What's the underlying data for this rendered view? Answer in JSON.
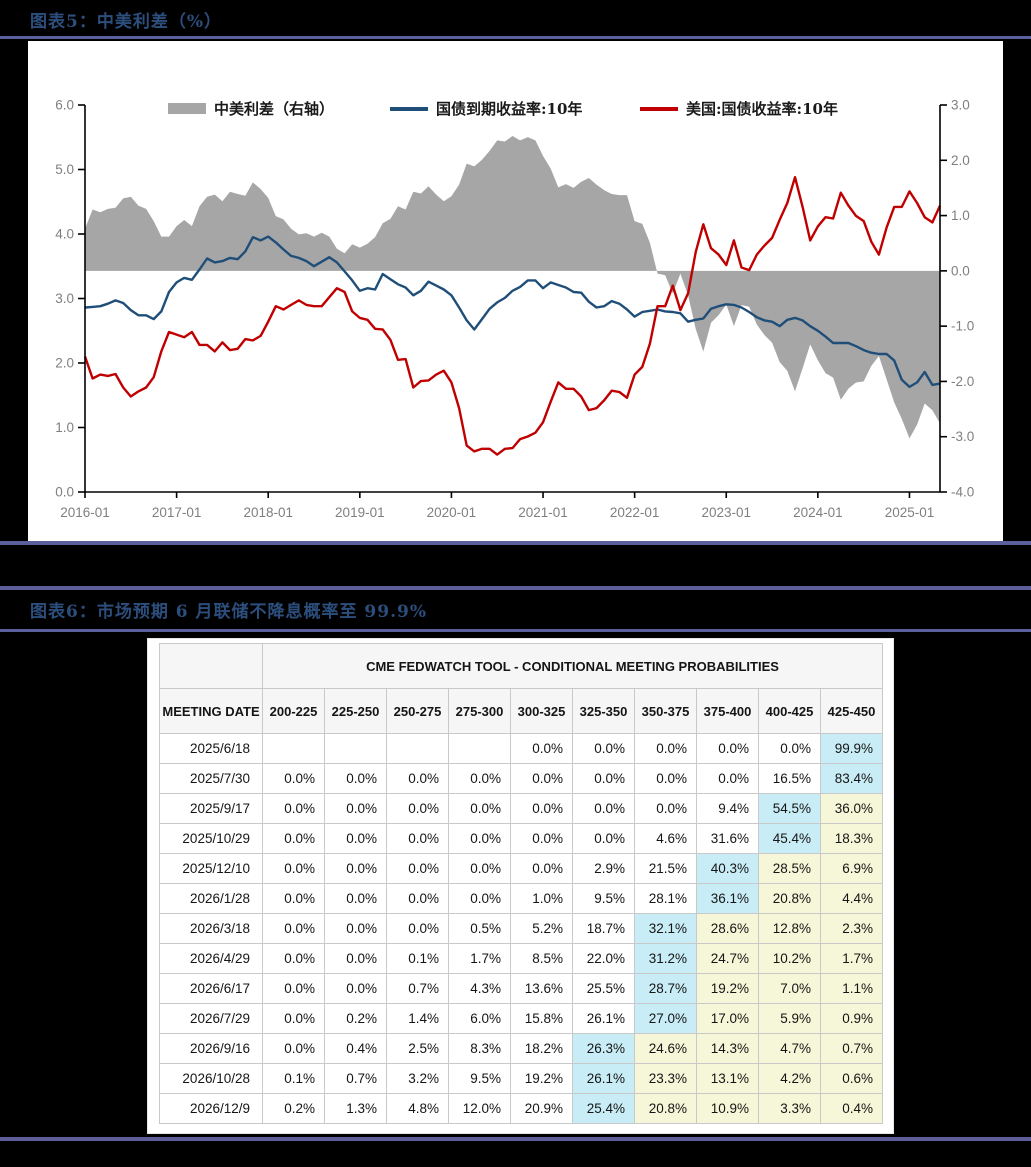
{
  "figure5": {
    "title": "图表5：中美利差（%）",
    "x_axis_labels": [
      "2016-01",
      "2017-01",
      "2018-01",
      "2019-01",
      "2020-01",
      "2021-01",
      "2022-01",
      "2023-01",
      "2024-01",
      "2025-01"
    ]
  },
  "figure6": {
    "title": "图表6：市场预期 6 月联储不降息概率至 99.9%"
  },
  "colors": {
    "separator": "#5d5f9b",
    "title_navy": "#2c4e7c",
    "axis_label_gray": "#7f7f7f",
    "spread_gray": "#a6a6a6",
    "cn_blue": "#1f4e79",
    "us_red": "#c00000"
  },
  "chart_data": {
    "type": "area+line combo, dual axis",
    "title": "中美利差（%）",
    "x_start": "2016-01",
    "x_interval": "monthly",
    "x_ticks": [
      "2016-01",
      "2017-01",
      "2018-01",
      "2019-01",
      "2020-01",
      "2021-01",
      "2022-01",
      "2023-01",
      "2024-01",
      "2025-01"
    ],
    "left_axis": {
      "min": 0,
      "max": 6,
      "ticks": [
        "0.0",
        "1.0",
        "2.0",
        "3.0",
        "4.0",
        "5.0",
        "6.0"
      ]
    },
    "right_axis": {
      "min": -4,
      "max": 3,
      "ticks": [
        "-4.0",
        "-3.0",
        "-2.0",
        "-1.0",
        "0.0",
        "1.0",
        "2.0",
        "3.0"
      ]
    },
    "legend_position": "top",
    "grid": false,
    "series": [
      {
        "name": "中美利差（右轴）",
        "type": "area",
        "axis": "right",
        "color": "#a6a6a6",
        "values": [
          0.76,
          1.11,
          1.06,
          1.12,
          1.14,
          1.31,
          1.34,
          1.18,
          1.12,
          0.9,
          0.62,
          0.62,
          0.81,
          0.92,
          0.81,
          1.17,
          1.34,
          1.38,
          1.26,
          1.43,
          1.39,
          1.36,
          1.6,
          1.48,
          1.32,
          0.99,
          0.93,
          0.76,
          0.66,
          0.68,
          0.62,
          0.69,
          0.62,
          0.4,
          0.32,
          0.48,
          0.42,
          0.49,
          0.61,
          0.86,
          0.94,
          1.17,
          1.11,
          1.43,
          1.4,
          1.53,
          1.38,
          1.26,
          1.35,
          1.56,
          1.94,
          1.89,
          2.01,
          2.17,
          2.36,
          2.34,
          2.44,
          2.36,
          2.42,
          2.36,
          2.08,
          1.85,
          1.51,
          1.57,
          1.5,
          1.61,
          1.68,
          1.56,
          1.46,
          1.39,
          1.37,
          1.37,
          0.9,
          0.85,
          0.51,
          -0.05,
          -0.08,
          -0.41,
          -0.05,
          -0.44,
          -1.05,
          -1.46,
          -0.94,
          -0.8,
          -0.61,
          -1.0,
          -0.62,
          -0.65,
          -0.97,
          -1.16,
          -1.3,
          -1.65,
          -1.81,
          -2.18,
          -1.76,
          -1.33,
          -1.62,
          -1.85,
          -1.93,
          -2.33,
          -2.13,
          -2.02,
          -2.0,
          -1.72,
          -1.54,
          -1.96,
          -2.38,
          -2.68,
          -3.03,
          -2.78,
          -2.4,
          -2.52,
          -2.76
        ]
      },
      {
        "name": "国债到期收益率:10年",
        "type": "line",
        "axis": "left",
        "color": "#1f4e79",
        "values": [
          2.86,
          2.87,
          2.88,
          2.92,
          2.97,
          2.93,
          2.82,
          2.74,
          2.74,
          2.68,
          2.8,
          3.1,
          3.25,
          3.32,
          3.29,
          3.45,
          3.62,
          3.56,
          3.58,
          3.63,
          3.61,
          3.73,
          3.95,
          3.9,
          3.96,
          3.87,
          3.76,
          3.66,
          3.63,
          3.58,
          3.5,
          3.57,
          3.64,
          3.56,
          3.42,
          3.28,
          3.12,
          3.16,
          3.14,
          3.38,
          3.3,
          3.22,
          3.17,
          3.05,
          3.12,
          3.26,
          3.2,
          3.14,
          3.05,
          2.86,
          2.66,
          2.52,
          2.68,
          2.84,
          2.94,
          3.01,
          3.12,
          3.18,
          3.28,
          3.28,
          3.16,
          3.25,
          3.21,
          3.17,
          3.1,
          3.09,
          2.95,
          2.86,
          2.88,
          2.96,
          2.92,
          2.83,
          2.72,
          2.79,
          2.81,
          2.83,
          2.8,
          2.79,
          2.77,
          2.64,
          2.67,
          2.69,
          2.84,
          2.88,
          2.91,
          2.9,
          2.86,
          2.79,
          2.71,
          2.66,
          2.64,
          2.57,
          2.67,
          2.7,
          2.66,
          2.57,
          2.5,
          2.41,
          2.31,
          2.31,
          2.31,
          2.26,
          2.2,
          2.16,
          2.14,
          2.14,
          2.04,
          1.74,
          1.63,
          1.7,
          1.86,
          1.66,
          1.68
        ]
      },
      {
        "name": "美国:国债收益率:10年",
        "type": "line",
        "axis": "left",
        "color": "#c00000",
        "values": [
          2.1,
          1.76,
          1.82,
          1.8,
          1.83,
          1.62,
          1.48,
          1.56,
          1.62,
          1.78,
          2.18,
          2.48,
          2.44,
          2.4,
          2.48,
          2.28,
          2.28,
          2.18,
          2.32,
          2.2,
          2.22,
          2.37,
          2.35,
          2.42,
          2.64,
          2.88,
          2.83,
          2.9,
          2.97,
          2.9,
          2.88,
          2.88,
          3.02,
          3.16,
          3.1,
          2.8,
          2.7,
          2.67,
          2.53,
          2.52,
          2.36,
          2.05,
          2.06,
          1.62,
          1.72,
          1.73,
          1.82,
          1.88,
          1.7,
          1.3,
          0.72,
          0.63,
          0.67,
          0.67,
          0.58,
          0.67,
          0.68,
          0.82,
          0.86,
          0.92,
          1.08,
          1.4,
          1.7,
          1.6,
          1.6,
          1.48,
          1.27,
          1.3,
          1.42,
          1.57,
          1.55,
          1.46,
          1.82,
          1.94,
          2.3,
          2.88,
          2.88,
          3.2,
          2.82,
          3.08,
          3.72,
          4.15,
          3.78,
          3.68,
          3.52,
          3.9,
          3.48,
          3.44,
          3.68,
          3.82,
          3.94,
          4.22,
          4.48,
          4.88,
          4.42,
          3.9,
          4.12,
          4.26,
          4.24,
          4.64,
          4.44,
          4.28,
          4.2,
          3.88,
          3.68,
          4.1,
          4.42,
          4.42,
          4.66,
          4.48,
          4.26,
          4.18,
          4.44
        ]
      }
    ]
  },
  "table": {
    "title_row": "CME FEDWATCH TOOL - CONDITIONAL MEETING PROBABILITIES",
    "date_header": "MEETING DATE",
    "range_headers": [
      "200-225",
      "225-250",
      "250-275",
      "275-300",
      "300-325",
      "325-350",
      "350-375",
      "375-400",
      "400-425",
      "425-450"
    ],
    "highlight_cyan": "#c9edf6",
    "highlight_yellow": "#f6f6d8",
    "rows": [
      {
        "date": "2025/6/18",
        "values": [
          "",
          "",
          "",
          "",
          "0.0%",
          "0.0%",
          "0.0%",
          "0.0%",
          "0.0%",
          "99.9%"
        ],
        "hl": [
          "",
          "",
          "",
          "",
          "",
          "",
          "",
          "",
          "",
          "c"
        ]
      },
      {
        "date": "2025/7/30",
        "values": [
          "0.0%",
          "0.0%",
          "0.0%",
          "0.0%",
          "0.0%",
          "0.0%",
          "0.0%",
          "0.0%",
          "16.5%",
          "83.4%"
        ],
        "hl": [
          "",
          "",
          "",
          "",
          "",
          "",
          "",
          "",
          "",
          "c"
        ]
      },
      {
        "date": "2025/9/17",
        "values": [
          "0.0%",
          "0.0%",
          "0.0%",
          "0.0%",
          "0.0%",
          "0.0%",
          "0.0%",
          "9.4%",
          "54.5%",
          "36.0%"
        ],
        "hl": [
          "",
          "",
          "",
          "",
          "",
          "",
          "",
          "",
          "c",
          "y"
        ]
      },
      {
        "date": "2025/10/29",
        "values": [
          "0.0%",
          "0.0%",
          "0.0%",
          "0.0%",
          "0.0%",
          "0.0%",
          "4.6%",
          "31.6%",
          "45.4%",
          "18.3%"
        ],
        "hl": [
          "",
          "",
          "",
          "",
          "",
          "",
          "",
          "",
          "c",
          "y"
        ]
      },
      {
        "date": "2025/12/10",
        "values": [
          "0.0%",
          "0.0%",
          "0.0%",
          "0.0%",
          "0.0%",
          "2.9%",
          "21.5%",
          "40.3%",
          "28.5%",
          "6.9%"
        ],
        "hl": [
          "",
          "",
          "",
          "",
          "",
          "",
          "",
          "c",
          "y",
          "y"
        ]
      },
      {
        "date": "2026/1/28",
        "values": [
          "0.0%",
          "0.0%",
          "0.0%",
          "0.0%",
          "1.0%",
          "9.5%",
          "28.1%",
          "36.1%",
          "20.8%",
          "4.4%"
        ],
        "hl": [
          "",
          "",
          "",
          "",
          "",
          "",
          "",
          "c",
          "y",
          "y"
        ]
      },
      {
        "date": "2026/3/18",
        "values": [
          "0.0%",
          "0.0%",
          "0.0%",
          "0.5%",
          "5.2%",
          "18.7%",
          "32.1%",
          "28.6%",
          "12.8%",
          "2.3%"
        ],
        "hl": [
          "",
          "",
          "",
          "",
          "",
          "",
          "c",
          "y",
          "y",
          "y"
        ]
      },
      {
        "date": "2026/4/29",
        "values": [
          "0.0%",
          "0.0%",
          "0.1%",
          "1.7%",
          "8.5%",
          "22.0%",
          "31.2%",
          "24.7%",
          "10.2%",
          "1.7%"
        ],
        "hl": [
          "",
          "",
          "",
          "",
          "",
          "",
          "c",
          "y",
          "y",
          "y"
        ]
      },
      {
        "date": "2026/6/17",
        "values": [
          "0.0%",
          "0.0%",
          "0.7%",
          "4.3%",
          "13.6%",
          "25.5%",
          "28.7%",
          "19.2%",
          "7.0%",
          "1.1%"
        ],
        "hl": [
          "",
          "",
          "",
          "",
          "",
          "",
          "c",
          "y",
          "y",
          "y"
        ]
      },
      {
        "date": "2026/7/29",
        "values": [
          "0.0%",
          "0.2%",
          "1.4%",
          "6.0%",
          "15.8%",
          "26.1%",
          "27.0%",
          "17.0%",
          "5.9%",
          "0.9%"
        ],
        "hl": [
          "",
          "",
          "",
          "",
          "",
          "",
          "c",
          "y",
          "y",
          "y"
        ]
      },
      {
        "date": "2026/9/16",
        "values": [
          "0.0%",
          "0.4%",
          "2.5%",
          "8.3%",
          "18.2%",
          "26.3%",
          "24.6%",
          "14.3%",
          "4.7%",
          "0.7%"
        ],
        "hl": [
          "",
          "",
          "",
          "",
          "",
          "c",
          "y",
          "y",
          "y",
          "y"
        ]
      },
      {
        "date": "2026/10/28",
        "values": [
          "0.1%",
          "0.7%",
          "3.2%",
          "9.5%",
          "19.2%",
          "26.1%",
          "23.3%",
          "13.1%",
          "4.2%",
          "0.6%"
        ],
        "hl": [
          "",
          "",
          "",
          "",
          "",
          "c",
          "y",
          "y",
          "y",
          "y"
        ]
      },
      {
        "date": "2026/12/9",
        "values": [
          "0.2%",
          "1.3%",
          "4.8%",
          "12.0%",
          "20.9%",
          "25.4%",
          "20.8%",
          "10.9%",
          "3.3%",
          "0.4%"
        ],
        "hl": [
          "",
          "",
          "",
          "",
          "",
          "c",
          "y",
          "y",
          "y",
          "y"
        ]
      }
    ]
  }
}
